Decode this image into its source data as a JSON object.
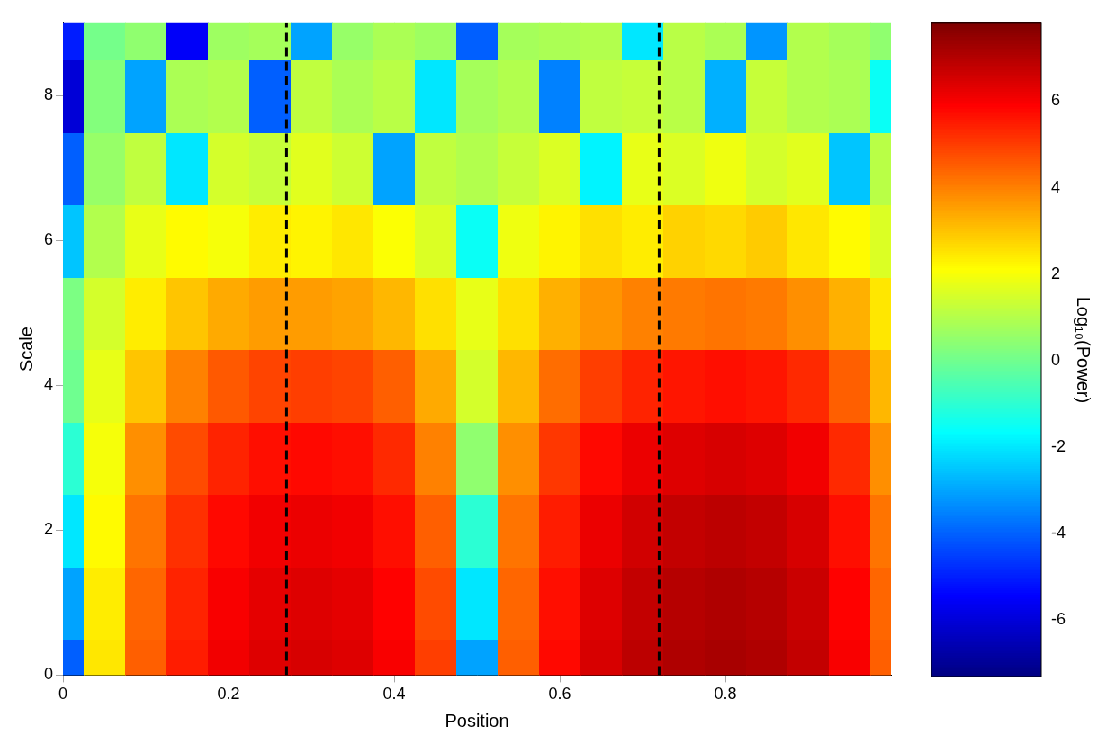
{
  "chart_data": {
    "type": "heatmap",
    "x_label": "Position",
    "y_label": "Scale",
    "xlim": [
      0,
      1
    ],
    "xticks": [
      0,
      0.2,
      0.4,
      0.6,
      0.8
    ],
    "ylim": [
      0,
      9
    ],
    "yticks": [
      0,
      2,
      4,
      6,
      8
    ],
    "grid": true,
    "x": [
      0,
      0.05,
      0.1,
      0.15,
      0.2,
      0.25,
      0.3,
      0.35,
      0.4,
      0.45,
      0.5,
      0.55,
      0.6,
      0.65,
      0.7,
      0.75,
      0.8,
      0.85,
      0.9,
      0.95,
      1.0
    ],
    "y": [
      0,
      1,
      2,
      3,
      4,
      5,
      6,
      7,
      8,
      9
    ],
    "cells": [
      [
        -4,
        2.5,
        4.5,
        5.5,
        6.1,
        6.4,
        6.5,
        6.4,
        6.0,
        5.0,
        -3,
        4.5,
        5.8,
        6.5,
        6.9,
        7.1,
        7.2,
        7.1,
        6.8,
        6.0,
        4.5
      ],
      [
        -3,
        2.4,
        4.4,
        5.4,
        6.0,
        6.3,
        6.4,
        6.3,
        5.9,
        4.8,
        -2,
        4.4,
        5.7,
        6.4,
        6.8,
        7.0,
        7.1,
        7.0,
        6.7,
        5.9,
        4.4
      ],
      [
        -2,
        2.2,
        4.2,
        5.2,
        5.8,
        6.1,
        6.2,
        6.1,
        5.7,
        4.5,
        -1,
        4.2,
        5.5,
        6.2,
        6.6,
        6.8,
        6.9,
        6.8,
        6.5,
        5.7,
        4.2
      ],
      [
        -1,
        2.0,
        3.8,
        4.8,
        5.4,
        5.7,
        5.8,
        5.7,
        5.3,
        4.0,
        0.5,
        3.8,
        5.1,
        5.8,
        6.2,
        6.4,
        6.5,
        6.4,
        6.1,
        5.3,
        3.8
      ],
      [
        0,
        1.8,
        3.0,
        4.0,
        4.6,
        4.9,
        5.0,
        4.9,
        4.5,
        3.4,
        1.5,
        3.2,
        4.3,
        5.0,
        5.4,
        5.6,
        5.7,
        5.6,
        5.3,
        4.5,
        3.2
      ],
      [
        0.2,
        1.5,
        2.4,
        3.0,
        3.4,
        3.6,
        3.6,
        3.5,
        3.2,
        2.6,
        1.8,
        2.6,
        3.3,
        3.7,
        4.0,
        4.1,
        4.2,
        4.1,
        3.8,
        3.3,
        2.5
      ],
      [
        -2.5,
        1.0,
        1.8,
        2.2,
        2.0,
        2.4,
        2.3,
        2.5,
        2.1,
        1.6,
        -1.5,
        1.9,
        2.3,
        2.6,
        2.4,
        2.8,
        2.7,
        2.9,
        2.5,
        2.2,
        1.6
      ],
      [
        -4,
        0.6,
        1.2,
        -2,
        1.5,
        1.3,
        1.7,
        1.4,
        -3,
        1.2,
        1.0,
        1.3,
        1.6,
        -1.8,
        1.8,
        1.6,
        1.9,
        1.5,
        1.7,
        -2.5,
        1.1
      ],
      [
        -6,
        0.3,
        -3,
        0.9,
        1.0,
        -4,
        1.2,
        0.9,
        1.1,
        -2,
        0.8,
        1.0,
        -3.5,
        1.2,
        1.3,
        1.1,
        -2.8,
        1.3,
        1.0,
        0.9,
        -1.5
      ],
      [
        -5,
        0.1,
        0.5,
        -5.5,
        0.7,
        0.8,
        -3,
        0.6,
        0.9,
        0.7,
        -4,
        0.8,
        0.9,
        1.0,
        -2,
        1.1,
        0.9,
        -3.2,
        1.0,
        0.8,
        0.5
      ]
    ],
    "colorbar": {
      "label": "Log₁₀(Power)",
      "lim": [
        -7.3,
        7.8
      ],
      "ticks": [
        -6,
        -4,
        -2,
        0,
        2,
        4,
        6
      ]
    },
    "ridge_lines": [
      0.27,
      0.72
    ]
  }
}
